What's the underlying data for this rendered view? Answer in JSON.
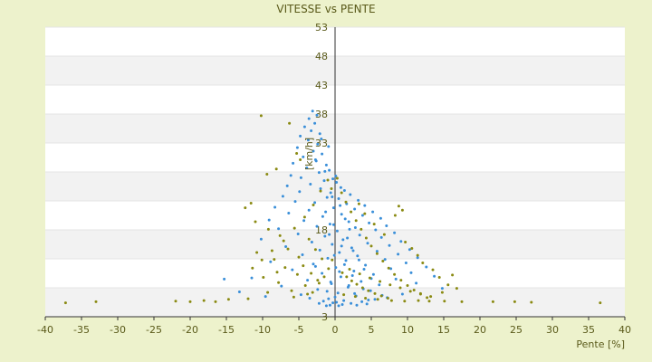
{
  "chart_data": {
    "type": "scatter",
    "title": "VITESSE vs PENTE",
    "xlabel": "Pente [%]",
    "ylabel": "[km/h]",
    "xlim": [
      -40,
      40
    ],
    "ylim": [
      3,
      53
    ],
    "x_ticks": [
      -40,
      -35,
      -30,
      -25,
      -20,
      -15,
      -10,
      -5,
      0,
      5,
      10,
      15,
      20,
      25,
      30,
      35,
      40
    ],
    "y_ticks": [
      3,
      8,
      13,
      18,
      23,
      28,
      33,
      38,
      43,
      48,
      53
    ],
    "y_tick_labels": [
      "3",
      "",
      "",
      "18",
      "",
      "",
      "33",
      "38",
      "43",
      "48",
      "53"
    ],
    "grid": "horizontal bands",
    "legend": "none",
    "colors": {
      "series_a": "#3a8fd9",
      "series_b": "#8a8a12",
      "band_light": "#ffffff",
      "band_dark": "#f2f2f2",
      "text": "#5a5a1a"
    },
    "series": [
      {
        "color": "#3a8fd9",
        "points": [
          [
            -3.1,
            38.5
          ],
          [
            -2.5,
            37.8
          ],
          [
            -3.6,
            37.2
          ],
          [
            -2.8,
            36.4
          ],
          [
            -4.2,
            35.8
          ],
          [
            -3.3,
            35.1
          ],
          [
            -2.1,
            34.6
          ],
          [
            -4.8,
            34.2
          ],
          [
            -3.7,
            33.5
          ],
          [
            -2.4,
            32.8
          ],
          [
            -5.2,
            32.2
          ],
          [
            -3.0,
            31.6
          ],
          [
            -1.8,
            31.1
          ],
          [
            -4.4,
            30.6
          ],
          [
            -2.7,
            30.1
          ],
          [
            -5.8,
            29.5
          ],
          [
            -1.2,
            29.2
          ],
          [
            -3.9,
            28.7
          ],
          [
            -0.8,
            28.3
          ],
          [
            -2.2,
            27.9
          ],
          [
            -6.1,
            27.4
          ],
          [
            -4.7,
            27.0
          ],
          [
            -0.3,
            26.8
          ],
          [
            -1.5,
            26.5
          ],
          [
            0.2,
            26.2
          ],
          [
            -3.4,
            25.9
          ],
          [
            -6.6,
            25.6
          ],
          [
            0.8,
            25.3
          ],
          [
            -2.0,
            25.1
          ],
          [
            1.3,
            24.8
          ],
          [
            -4.9,
            24.6
          ],
          [
            -0.6,
            24.4
          ],
          [
            2.1,
            24.1
          ],
          [
            -7.2,
            23.8
          ],
          [
            -1.1,
            23.6
          ],
          [
            0.5,
            23.4
          ],
          [
            3.2,
            23.1
          ],
          [
            -5.5,
            22.9
          ],
          [
            -2.8,
            22.7
          ],
          [
            1.6,
            22.5
          ],
          [
            4.1,
            22.2
          ],
          [
            -8.3,
            21.9
          ],
          [
            -0.2,
            21.8
          ],
          [
            2.7,
            21.6
          ],
          [
            -3.6,
            21.4
          ],
          [
            5.2,
            21.1
          ],
          [
            -6.4,
            20.9
          ],
          [
            0.9,
            20.7
          ],
          [
            3.8,
            20.5
          ],
          [
            -1.7,
            20.3
          ],
          [
            6.3,
            20.0
          ],
          [
            -9.1,
            19.7
          ],
          [
            -4.3,
            19.6
          ],
          [
            1.9,
            19.4
          ],
          [
            4.7,
            19.2
          ],
          [
            -0.7,
            19.0
          ],
          [
            7.1,
            18.7
          ],
          [
            -2.5,
            18.6
          ],
          [
            2.8,
            18.4
          ],
          [
            -7.8,
            18.2
          ],
          [
            5.6,
            18.0
          ],
          [
            0.3,
            17.8
          ],
          [
            8.2,
            17.5
          ],
          [
            -5.1,
            17.3
          ],
          [
            3.4,
            17.1
          ],
          [
            -1.4,
            16.9
          ],
          [
            6.4,
            16.7
          ],
          [
            -10.2,
            16.4
          ],
          [
            1.1,
            16.3
          ],
          [
            9.1,
            16.0
          ],
          [
            -3.2,
            15.9
          ],
          [
            4.5,
            15.7
          ],
          [
            -0.4,
            15.5
          ],
          [
            7.5,
            15.3
          ],
          [
            -6.8,
            15.1
          ],
          [
            2.3,
            14.9
          ],
          [
            10.3,
            14.6
          ],
          [
            -2.1,
            14.5
          ],
          [
            5.8,
            14.3
          ],
          [
            0.6,
            14.1
          ],
          [
            8.7,
            13.8
          ],
          [
            -4.5,
            13.7
          ],
          [
            3.1,
            13.5
          ],
          [
            11.4,
            13.2
          ],
          [
            -1.0,
            13.1
          ],
          [
            6.9,
            12.9
          ],
          [
            1.5,
            12.7
          ],
          [
            -8.9,
            12.5
          ],
          [
            9.8,
            12.3
          ],
          [
            -3.0,
            12.1
          ],
          [
            4.2,
            11.9
          ],
          [
            12.6,
            11.6
          ],
          [
            0.1,
            11.5
          ],
          [
            7.7,
            11.3
          ],
          [
            -5.9,
            11.1
          ],
          [
            2.6,
            10.9
          ],
          [
            10.5,
            10.6
          ],
          [
            -1.8,
            10.5
          ],
          [
            5.3,
            10.3
          ],
          [
            13.7,
            10.0
          ],
          [
            0.8,
            9.9
          ],
          [
            -11.5,
            9.7
          ],
          [
            8.4,
            9.5
          ],
          [
            -3.8,
            9.3
          ],
          [
            3.6,
            9.1
          ],
          [
            -15.3,
            9.5
          ],
          [
            11.2,
            8.8
          ],
          [
            -0.5,
            8.7
          ],
          [
            6.1,
            8.5
          ],
          [
            -7.4,
            8.3
          ],
          [
            1.8,
            8.1
          ],
          [
            14.8,
            7.9
          ],
          [
            -2.4,
            7.7
          ],
          [
            4.9,
            7.5
          ],
          [
            -13.2,
            7.3
          ],
          [
            0.4,
            7.1
          ],
          [
            9.3,
            6.9
          ],
          [
            -4.7,
            6.8
          ],
          [
            2.9,
            6.6
          ],
          [
            -9.6,
            6.5
          ],
          [
            7.2,
            6.3
          ],
          [
            -0.9,
            6.1
          ],
          [
            5.5,
            6.0
          ],
          [
            1.2,
            5.8
          ],
          [
            -1.6,
            5.7
          ],
          [
            3.7,
            5.6
          ],
          [
            0.2,
            5.5
          ],
          [
            -0.3,
            5.4
          ],
          [
            2.2,
            5.3
          ],
          [
            4.4,
            5.2
          ],
          [
            -2.2,
            5.3
          ],
          [
            1.0,
            5.1
          ],
          [
            -0.7,
            5.0
          ],
          [
            3.0,
            5.0
          ],
          [
            0.5,
            4.9
          ],
          [
            -1.2,
            4.9
          ],
          [
            -1.9,
            33.7
          ],
          [
            -0.9,
            32.4
          ],
          [
            -2.6,
            29.9
          ],
          [
            -1.4,
            28.1
          ],
          [
            0.1,
            27.3
          ],
          [
            -0.4,
            23.7
          ],
          [
            0.7,
            22.2
          ],
          [
            -1.3,
            21.1
          ],
          [
            1.4,
            19.9
          ],
          [
            -0.2,
            18.9
          ],
          [
            2.0,
            18.1
          ],
          [
            -0.8,
            17.2
          ],
          [
            1.7,
            16.6
          ],
          [
            0.9,
            15.2
          ],
          [
            2.5,
            14.4
          ],
          [
            -0.1,
            13.6
          ],
          [
            3.3,
            12.8
          ],
          [
            1.3,
            12.0
          ],
          [
            -2.7,
            11.7
          ],
          [
            4.0,
            11.2
          ],
          [
            0.6,
            10.8
          ],
          [
            2.4,
            10.1
          ],
          [
            5.0,
            9.6
          ],
          [
            -0.6,
            9.0
          ],
          [
            1.9,
            8.4
          ],
          [
            3.9,
            7.8
          ],
          [
            -1.1,
            7.4
          ],
          [
            2.7,
            7.0
          ],
          [
            6.5,
            6.7
          ],
          [
            0.0,
            6.4
          ],
          [
            -3.5,
            6.2
          ],
          [
            4.6,
            5.9
          ]
        ]
      },
      {
        "color": "#8a8a12",
        "points": [
          [
            -37.2,
            5.4
          ],
          [
            -33.0,
            5.6
          ],
          [
            -22.0,
            5.7
          ],
          [
            -20.0,
            5.6
          ],
          [
            -18.1,
            5.8
          ],
          [
            -16.5,
            5.6
          ],
          [
            -14.7,
            6.0
          ],
          [
            -12.0,
            6.1
          ],
          [
            -10.2,
            37.7
          ],
          [
            -9.4,
            27.6
          ],
          [
            -8.1,
            28.5
          ],
          [
            -6.3,
            36.4
          ],
          [
            -5.3,
            31.2
          ],
          [
            -4.8,
            30.1
          ],
          [
            -11.6,
            22.6
          ],
          [
            -12.4,
            21.8
          ],
          [
            -11.0,
            19.4
          ],
          [
            -9.2,
            18.1
          ],
          [
            -7.6,
            17.0
          ],
          [
            -10.8,
            14.1
          ],
          [
            -8.4,
            12.9
          ],
          [
            -6.9,
            11.5
          ],
          [
            -5.2,
            10.3
          ],
          [
            -9.9,
            9.8
          ],
          [
            -7.8,
            8.9
          ],
          [
            -4.1,
            8.4
          ],
          [
            -6.0,
            7.5
          ],
          [
            -3.1,
            7.2
          ],
          [
            -2.2,
            8.8
          ],
          [
            -1.5,
            9.9
          ],
          [
            -0.9,
            11.3
          ],
          [
            -0.4,
            12.8
          ],
          [
            -1.0,
            26.6
          ],
          [
            -0.5,
            25.1
          ],
          [
            0.3,
            26.9
          ],
          [
            0.9,
            24.4
          ],
          [
            1.5,
            22.8
          ],
          [
            2.2,
            21.1
          ],
          [
            2.9,
            19.6
          ],
          [
            3.6,
            18.1
          ],
          [
            4.3,
            16.6
          ],
          [
            5.0,
            15.2
          ],
          [
            5.8,
            13.9
          ],
          [
            6.6,
            12.6
          ],
          [
            7.4,
            11.4
          ],
          [
            8.2,
            10.3
          ],
          [
            9.1,
            9.3
          ],
          [
            10.0,
            8.4
          ],
          [
            10.9,
            7.6
          ],
          [
            11.8,
            6.9
          ],
          [
            12.7,
            6.3
          ],
          [
            8.8,
            22.1
          ],
          [
            9.3,
            21.4
          ],
          [
            8.3,
            20.5
          ],
          [
            1.0,
            10.6
          ],
          [
            1.6,
            9.9
          ],
          [
            2.3,
            9.2
          ],
          [
            3.0,
            8.6
          ],
          [
            3.8,
            8.0
          ],
          [
            4.6,
            7.5
          ],
          [
            5.5,
            7.0
          ],
          [
            6.4,
            6.6
          ],
          [
            7.3,
            6.2
          ],
          [
            2.0,
            11.2
          ],
          [
            3.4,
            10.4
          ],
          [
            4.8,
            9.7
          ],
          [
            6.2,
            9.1
          ],
          [
            7.6,
            8.5
          ],
          [
            9.0,
            8.0
          ],
          [
            10.4,
            7.4
          ],
          [
            11.8,
            7.0
          ],
          [
            13.2,
            6.5
          ],
          [
            14.4,
            9.8
          ],
          [
            15.6,
            8.5
          ],
          [
            16.2,
            10.2
          ],
          [
            16.8,
            7.9
          ],
          [
            17.5,
            5.6
          ],
          [
            21.8,
            5.6
          ],
          [
            24.8,
            5.6
          ],
          [
            27.1,
            5.5
          ],
          [
            36.6,
            5.4
          ],
          [
            12.1,
            12.3
          ],
          [
            11.4,
            13.6
          ],
          [
            13.5,
            11.1
          ],
          [
            14.8,
            7.2
          ],
          [
            10.6,
            14.8
          ],
          [
            9.7,
            15.9
          ],
          [
            6.8,
            17.2
          ],
          [
            5.4,
            19.0
          ],
          [
            4.1,
            20.8
          ],
          [
            3.3,
            22.5
          ],
          [
            -2.0,
            24.7
          ],
          [
            -3.0,
            22.3
          ],
          [
            -4.2,
            20.2
          ],
          [
            -5.6,
            18.3
          ],
          [
            -7.1,
            16.1
          ],
          [
            -8.7,
            14.4
          ],
          [
            -10.1,
            12.8
          ],
          [
            -11.4,
            11.4
          ],
          [
            -3.6,
            16.4
          ],
          [
            -2.7,
            14.6
          ],
          [
            -1.8,
            13.0
          ],
          [
            -5.0,
            13.3
          ],
          [
            -6.5,
            14.7
          ],
          [
            -4.4,
            11.8
          ],
          [
            -3.3,
            10.5
          ],
          [
            -2.4,
            9.3
          ],
          [
            -8.0,
            10.7
          ],
          [
            -9.3,
            7.2
          ],
          [
            -5.7,
            6.4
          ],
          [
            -3.8,
            6.9
          ],
          [
            1.2,
            6.8
          ],
          [
            2.8,
            6.5
          ],
          [
            4.2,
            6.2
          ],
          [
            5.9,
            6.0
          ],
          [
            7.8,
            5.8
          ],
          [
            9.6,
            5.7
          ],
          [
            11.5,
            5.8
          ],
          [
            13.0,
            5.7
          ],
          [
            15.1,
            5.7
          ]
        ]
      }
    ]
  }
}
